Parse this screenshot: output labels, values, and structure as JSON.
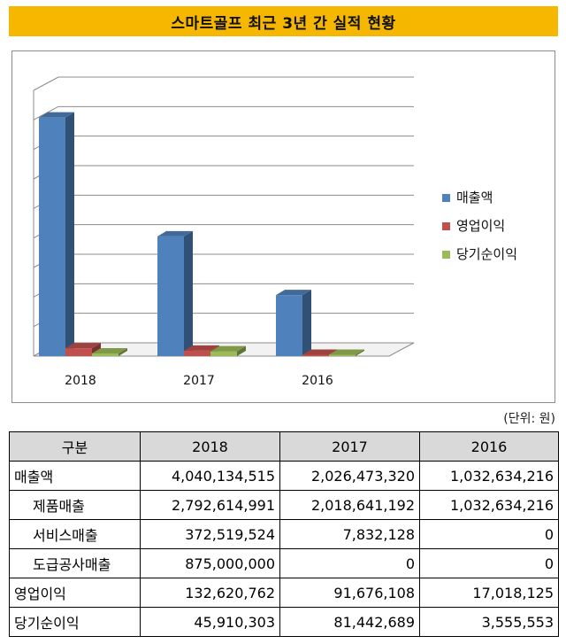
{
  "title": "스마트골프 최근 3년 간 실적 현황",
  "unit_note": "(단위: 원)",
  "chart_data": {
    "type": "bar",
    "categories": [
      "2018",
      "2017",
      "2016"
    ],
    "series": [
      {
        "name": "매출액",
        "values": [
          4040134515,
          2026473320,
          1032634216
        ]
      },
      {
        "name": "영업이익",
        "values": [
          132620762,
          91676108,
          17018125
        ]
      },
      {
        "name": "당기순이익",
        "values": [
          45910303,
          81442689,
          3555553
        ]
      }
    ],
    "ylim": [
      0,
      4500000000
    ],
    "grid": true,
    "legend": "right",
    "colors": [
      "#4f81bd",
      "#c0504d",
      "#9bbb59"
    ]
  },
  "table": {
    "headers": [
      "구분",
      "2018",
      "2017",
      "2016"
    ],
    "rows": [
      {
        "label": "매출액",
        "values": [
          "4,040,134,515",
          "2,026,473,320",
          "1,032,634,216"
        ]
      },
      {
        "label": "제품매출",
        "values": [
          "2,792,614,991",
          "2,018,641,192",
          "1,032,634,216"
        ]
      },
      {
        "label": "서비스매출",
        "values": [
          "372,519,524",
          "7,832,128",
          "0"
        ]
      },
      {
        "label": "도급공사매출",
        "values": [
          "875,000,000",
          "0",
          "0"
        ]
      },
      {
        "label": "영업이익",
        "values": [
          "132,620,762",
          "91,676,108",
          "17,018,125"
        ]
      },
      {
        "label": "당기순이익",
        "values": [
          "45,910,303",
          "81,442,689",
          "3,555,553"
        ]
      }
    ]
  }
}
